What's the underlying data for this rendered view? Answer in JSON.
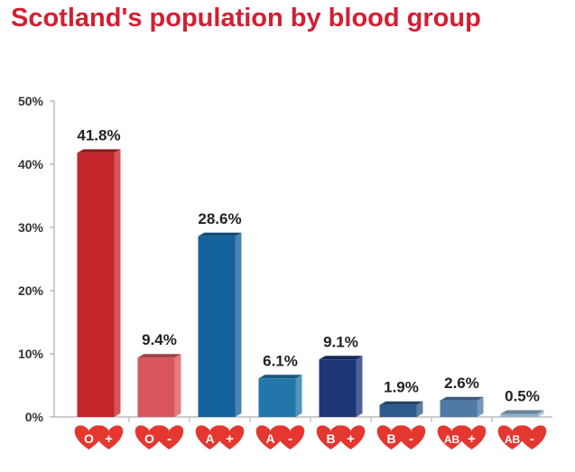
{
  "title": "Scotland's population by blood group",
  "chart_data": {
    "type": "bar",
    "title": "Scotland's population by blood group",
    "xlabel": "",
    "ylabel": "",
    "ylim": [
      0,
      50
    ],
    "yticks": [
      "0%",
      "10%",
      "20%",
      "30%",
      "40%",
      "50%"
    ],
    "grid": false,
    "legend": "none",
    "categories": [
      {
        "letters": "O",
        "sign": "+"
      },
      {
        "letters": "O",
        "sign": "-"
      },
      {
        "letters": "A",
        "sign": "+"
      },
      {
        "letters": "A",
        "sign": "-"
      },
      {
        "letters": "B",
        "sign": "+"
      },
      {
        "letters": "B",
        "sign": "-"
      },
      {
        "letters": "AB",
        "sign": "+"
      },
      {
        "letters": "AB",
        "sign": "-"
      }
    ],
    "values": [
      41.8,
      9.4,
      28.6,
      6.1,
      9.1,
      1.9,
      2.6,
      0.5
    ],
    "value_labels": [
      "41.8%",
      "9.4%",
      "28.6%",
      "6.1%",
      "9.1%",
      "1.9%",
      "2.6%",
      "0.5%"
    ],
    "colors": {
      "title": "#d31f32",
      "heart": "#e4372f",
      "bars": [
        "#c4262b",
        "#d9575c",
        "#14629e",
        "#2276a9",
        "#1e3677",
        "#2f5b8c",
        "#4f7aa6",
        "#8fb1cc"
      ]
    }
  }
}
